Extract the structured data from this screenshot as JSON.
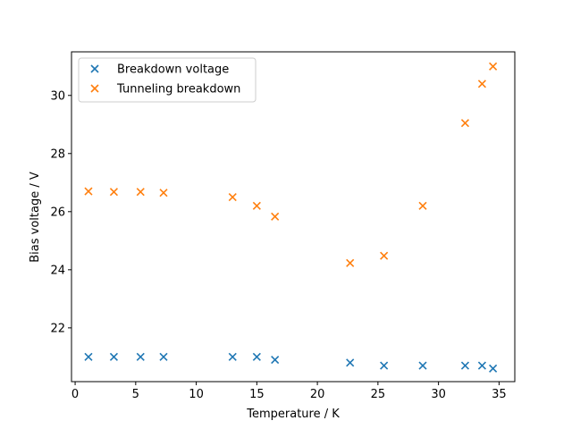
{
  "chart_data": {
    "type": "scatter",
    "title": "",
    "xlabel": "Temperature / K",
    "ylabel": "Bias voltage / V",
    "xlim": [
      -0.3,
      36.3
    ],
    "ylim": [
      20.15,
      31.5
    ],
    "xticks": [
      0,
      5,
      10,
      15,
      20,
      25,
      30,
      35
    ],
    "yticks": [
      22,
      24,
      26,
      28,
      30
    ],
    "grid": false,
    "legend_position": "top-left",
    "marker": "x",
    "series": [
      {
        "name": "Breakdown voltage",
        "color": "#1f77b4",
        "x": [
          1.1,
          3.2,
          5.4,
          7.3,
          13.0,
          15.0,
          16.5,
          22.7,
          25.5,
          28.7,
          32.2,
          33.6,
          34.5
        ],
        "y": [
          21.0,
          21.0,
          21.0,
          21.0,
          21.0,
          21.0,
          20.9,
          20.8,
          20.7,
          20.7,
          20.7,
          20.7,
          20.6
        ]
      },
      {
        "name": "Tunneling breakdown",
        "color": "#ff7f0e",
        "x": [
          1.1,
          3.2,
          5.4,
          7.3,
          13.0,
          15.0,
          16.5,
          22.7,
          25.5,
          28.7,
          32.2,
          33.6,
          34.5
        ],
        "y": [
          26.7,
          26.68,
          26.68,
          26.65,
          26.5,
          26.2,
          25.83,
          24.23,
          24.48,
          26.2,
          29.05,
          30.4,
          31.0
        ]
      }
    ]
  }
}
